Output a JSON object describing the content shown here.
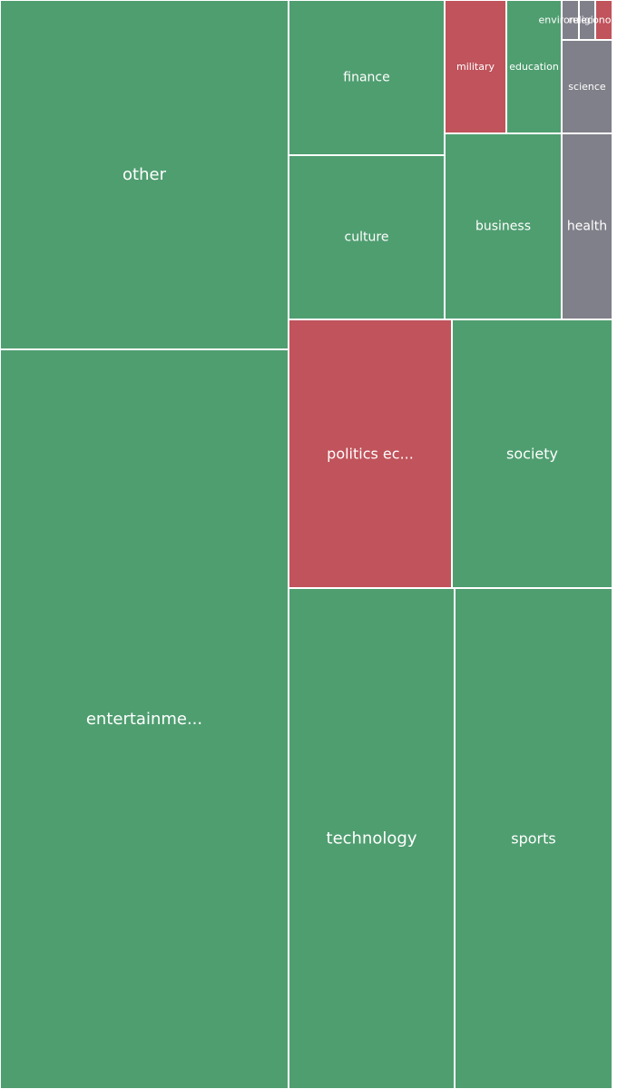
{
  "chart_data": {
    "type": "treemap",
    "colors": {
      "green": "#4f9e70",
      "red": "#c0535b",
      "gray": "#80808a"
    },
    "items": [
      {
        "label": "other",
        "color": "green"
      },
      {
        "label": "entertainme...",
        "color": "green"
      },
      {
        "label": "finance",
        "color": "green"
      },
      {
        "label": "culture",
        "color": "green"
      },
      {
        "label": "military",
        "color": "red"
      },
      {
        "label": "education",
        "color": "green"
      },
      {
        "label": "environment",
        "color": "gray"
      },
      {
        "label": "religion",
        "color": "gray"
      },
      {
        "label": "economy",
        "color": "red"
      },
      {
        "label": "science",
        "color": "gray"
      },
      {
        "label": "business",
        "color": "green"
      },
      {
        "label": "health",
        "color": "gray"
      },
      {
        "label": "politics ec...",
        "color": "red"
      },
      {
        "label": "society",
        "color": "green"
      },
      {
        "label": "technology",
        "color": "green"
      },
      {
        "label": "sports",
        "color": "green"
      }
    ]
  }
}
